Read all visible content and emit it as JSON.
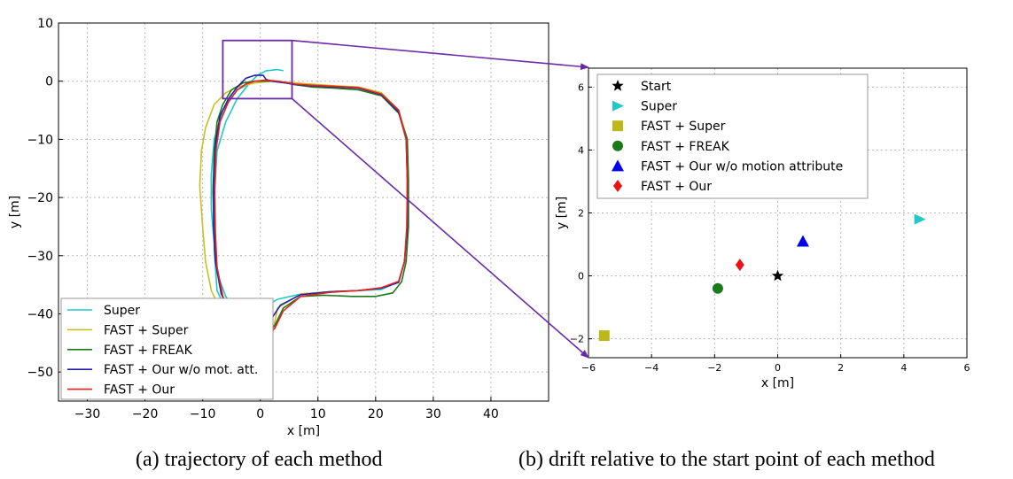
{
  "chart_data": [
    {
      "type": "line",
      "xlabel": "x [m]",
      "ylabel": "y [m]",
      "xlim": [
        -35,
        50
      ],
      "ylim": [
        -55,
        10
      ],
      "xticks": [
        -30,
        -20,
        -10,
        0,
        10,
        20,
        30,
        40
      ],
      "yticks": [
        10,
        0,
        -10,
        -20,
        -30,
        -40,
        -50
      ],
      "grid": true,
      "legend_position": "bottom-left",
      "zoom_box": {
        "x": [
          -6.5,
          5.5
        ],
        "y": [
          -3,
          7
        ]
      },
      "series": [
        {
          "name": "Super",
          "color": "#1fc8c8",
          "x": [
            0,
            -2,
            -4,
            -6,
            -7.5,
            -8,
            -8.5,
            -8.5,
            -8,
            -6.5,
            -4,
            -1,
            2,
            4.5,
            6,
            9,
            13,
            17,
            21,
            24,
            25.5,
            25.5,
            25.5,
            25,
            24,
            21,
            17,
            12,
            7,
            3,
            0.5,
            -2.5,
            -5.5,
            -7.5,
            -8,
            -8,
            -7.5,
            -6,
            -4,
            -2,
            -0.5,
            1,
            3,
            4
          ],
          "y": [
            -41.5,
            -41,
            -39.5,
            -37,
            -33,
            -28,
            -22,
            -16,
            -10,
            -5,
            -1.5,
            0,
            0,
            -0.3,
            -0.5,
            -0.7,
            -0.9,
            -1,
            -2,
            -5,
            -10,
            -17,
            -25,
            -31,
            -34.5,
            -35.8,
            -36,
            -36.2,
            -36.6,
            -37.5,
            -39,
            -40.5,
            -40.2,
            -36,
            -29,
            -20,
            -12,
            -7,
            -3,
            -0.5,
            1,
            1.8,
            2,
            1.8
          ]
        },
        {
          "name": "FAST + Super",
          "color": "#c8c020",
          "x": [
            1.5,
            -1,
            -4,
            -6.5,
            -8.5,
            -9.5,
            -10,
            -10.5,
            -10.2,
            -9.5,
            -8,
            -6,
            -4,
            -1,
            2,
            4.5,
            6,
            9,
            13,
            17,
            21,
            24,
            25.5,
            25.5,
            25.5,
            25,
            24,
            21,
            17,
            12,
            7,
            3,
            2
          ],
          "y": [
            -45,
            -44.5,
            -43,
            -40,
            -36,
            -31,
            -25,
            -18,
            -12,
            -8,
            -4,
            -2,
            -1,
            -0.3,
            0,
            -0.2,
            -0.3,
            -0.5,
            -0.8,
            -1,
            -2,
            -5,
            -10,
            -17,
            -25,
            -31,
            -34.5,
            -35.6,
            -36,
            -36.2,
            -36.6,
            -39,
            -44
          ]
        },
        {
          "name": "FAST + FREAK",
          "color": "#1a7a1a",
          "x": [
            0.5,
            -2,
            -4.5,
            -6.5,
            -7.5,
            -8,
            -8.2,
            -8,
            -7.5,
            -6.5,
            -5,
            -3,
            -1,
            2,
            4.5,
            6,
            9,
            13,
            17,
            21,
            24,
            25.5,
            25.7,
            25.7,
            25.3,
            24.5,
            23,
            20,
            16,
            11,
            7,
            4,
            2.5,
            1
          ],
          "y": [
            -43.5,
            -43,
            -41,
            -37,
            -32,
            -26,
            -19,
            -12,
            -7,
            -4,
            -1.5,
            -0.3,
            0,
            0,
            -0.3,
            -0.6,
            -1,
            -1.2,
            -1.5,
            -2.5,
            -5.5,
            -10,
            -17,
            -25,
            -31,
            -34.5,
            -36.4,
            -37,
            -37,
            -36.8,
            -37,
            -39,
            -42,
            -43.5
          ]
        },
        {
          "name": "FAST + Our w/o mot. att.",
          "color": "#2020a8",
          "x": [
            0,
            -2.5,
            -5,
            -6.8,
            -7.8,
            -8.1,
            -8.1,
            -7.8,
            -7,
            -5.5,
            -4,
            -2.5,
            -1,
            0.5,
            1,
            2,
            4.5,
            6,
            9,
            13,
            17,
            21,
            24,
            25.3,
            25.5,
            25.5,
            25,
            24,
            21,
            17,
            12,
            7,
            3.5,
            1.5,
            0.5
          ],
          "y": [
            -43,
            -42.5,
            -40.5,
            -36.5,
            -31,
            -25,
            -18,
            -11,
            -6,
            -3,
            -1,
            0.5,
            1,
            1,
            0.3,
            0,
            -0.3,
            -0.6,
            -0.8,
            -1,
            -1.2,
            -2.3,
            -5.3,
            -10,
            -17,
            -25,
            -31,
            -34.6,
            -35.6,
            -36,
            -36.2,
            -36.7,
            -38.5,
            -41.5,
            -43
          ]
        },
        {
          "name": "FAST + Our",
          "color": "#e82020",
          "x": [
            0,
            -2,
            -4.5,
            -6.5,
            -7.5,
            -7.8,
            -7.9,
            -7.7,
            -7,
            -5.5,
            -4,
            -2.5,
            -1,
            1,
            3,
            4.5,
            6,
            9,
            13,
            17,
            21,
            24,
            25.3,
            25.5,
            25.4,
            25,
            24,
            21,
            17,
            12,
            7,
            4,
            2.5,
            1,
            0
          ],
          "y": [
            -43.8,
            -43.2,
            -41,
            -37,
            -32,
            -26,
            -19,
            -12,
            -7,
            -3.5,
            -1.5,
            -0.5,
            0,
            0.2,
            0,
            -0.2,
            -0.5,
            -0.7,
            -0.9,
            -1.1,
            -2.2,
            -5,
            -10,
            -17,
            -25,
            -31,
            -34.4,
            -35.5,
            -36,
            -36.3,
            -37,
            -39.5,
            -42.5,
            -43.8,
            -43.8
          ]
        }
      ]
    },
    {
      "type": "scatter",
      "xlabel": "x [m]",
      "ylabel": "y [m]",
      "xlim": [
        -6,
        6
      ],
      "ylim": [
        -2.6,
        6.6
      ],
      "xticks": [
        -6,
        -4,
        -2,
        0,
        2,
        4,
        6
      ],
      "yticks": [
        6,
        4,
        2,
        0,
        -2
      ],
      "grid": true,
      "legend_position": "top-left",
      "points": [
        {
          "name": "Start",
          "x": 0,
          "y": 0,
          "marker": "star",
          "color": "#000000"
        },
        {
          "name": "Super",
          "x": 4.5,
          "y": 1.8,
          "marker": "triangle-right",
          "color": "#20c8c8"
        },
        {
          "name": "FAST + Super",
          "x": -5.5,
          "y": -1.9,
          "marker": "square",
          "color": "#bdb81a"
        },
        {
          "name": "FAST + FREAK",
          "x": -1.9,
          "y": -0.4,
          "marker": "circle",
          "color": "#1a7a1a"
        },
        {
          "name": "FAST + Our w/o motion attribute",
          "x": 0.8,
          "y": 1.1,
          "marker": "triangle-up",
          "color": "#0000ee"
        },
        {
          "name": "FAST + Our",
          "x": -1.2,
          "y": 0.35,
          "marker": "diamond",
          "color": "#ee1111"
        }
      ]
    }
  ],
  "captions": {
    "a": "(a) trajectory of each method",
    "b": "(b) drift relative to the start point of each method"
  },
  "colors": {
    "zoom": "#6a2aa8",
    "grid": "#b8b8b8"
  }
}
